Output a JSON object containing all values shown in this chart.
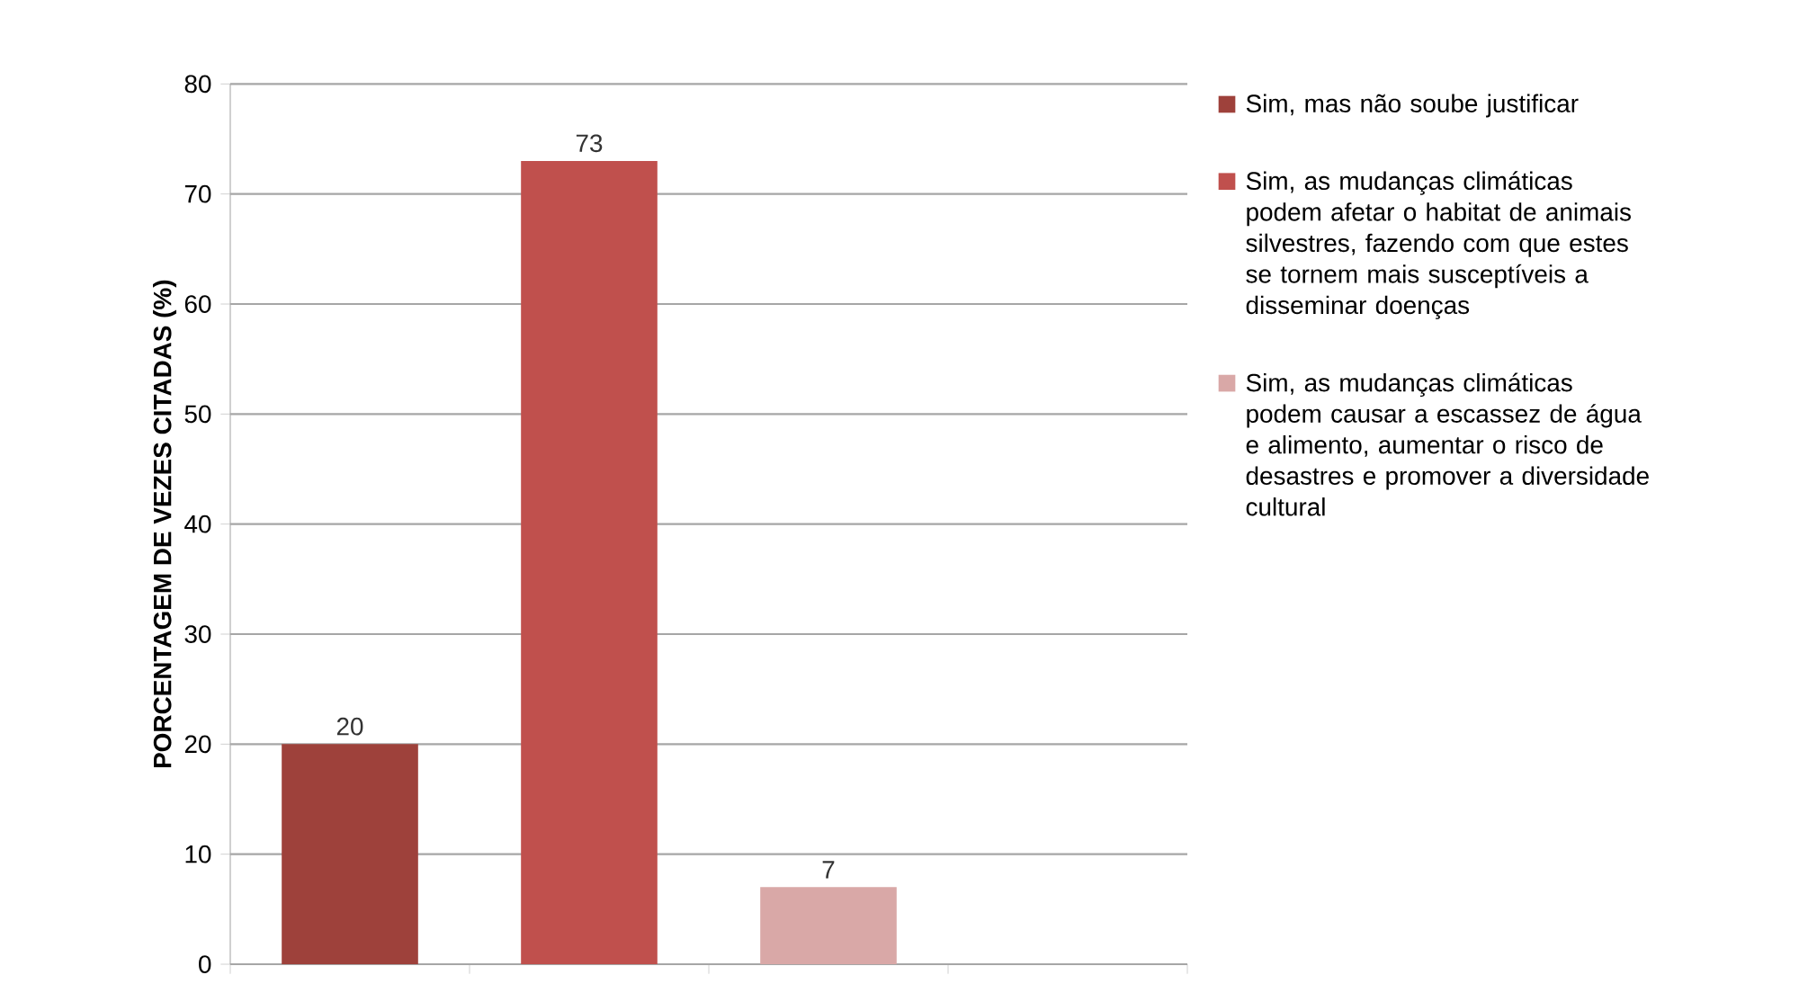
{
  "chart_data": {
    "type": "bar",
    "ylabel": "PORCENTAGEM DE VEZES CITADAS (%)",
    "categories": [
      null,
      null,
      null,
      null
    ],
    "series": [
      {
        "name": "Sim, mas não soube justificar",
        "color": "#9e413b",
        "values": [
          20,
          null,
          null,
          null
        ]
      },
      {
        "name": "Sim, as mudanças climáticas podem afetar o habitat de animais silvestres, fazendo com que estes se tornem mais susceptíveis a disseminar doenças",
        "color": "#c0504d",
        "values": [
          null,
          73,
          null,
          null
        ]
      },
      {
        "name": "Sim, as mudanças climáticas podem causar a escassez de água e alimento, aumentar o risco de desastres e promover a diversidade cultural",
        "color": "#d9a8a7",
        "values": [
          null,
          null,
          7,
          null
        ]
      }
    ],
    "ylim": [
      0,
      80
    ],
    "yticks": [
      0,
      10,
      20,
      30,
      40,
      50,
      60,
      70,
      80
    ],
    "grid": "y",
    "legend": "right",
    "data_labels": true
  }
}
